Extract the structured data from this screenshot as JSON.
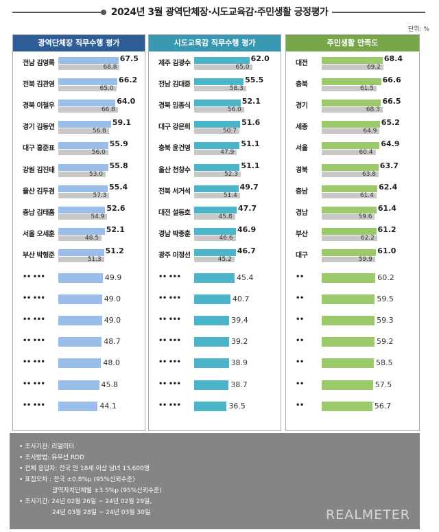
{
  "title": "2024년 3월 광역단체장·시도교육감·주민생활 긍정평가",
  "unit": "단위: %",
  "colors": {
    "panel1": "#2e5e95",
    "panel2": "#3898b2",
    "panel3": "#76a648",
    "bar1": "#9bbde9",
    "bar2": "#4cb5c9",
    "bar3": "#9cc969",
    "prev": "#c8c8c8",
    "footer": "#858585"
  },
  "chart_data": [
    {
      "type": "bar",
      "title": "광역단체장 직무수행 평가",
      "categories": [
        "전남 김영록",
        "전북 김관영",
        "경북 이철우",
        "경기 김동연",
        "대구 홍준표",
        "강원 김진태",
        "울산 김두겸",
        "충남 김태흠",
        "서울 오세훈",
        "부산 박형준",
        "•• •••",
        "•• •••",
        "•• •••",
        "•• •••",
        "•• •••",
        "•• •••",
        "•• •••"
      ],
      "series": [
        {
          "values": [
            67.5,
            66.2,
            64.0,
            59.1,
            55.9,
            55.8,
            55.4,
            52.6,
            52.1,
            51.2,
            49.9,
            49.0,
            49.0,
            48.7,
            48.0,
            45.8,
            44.1
          ]
        },
        {
          "values": [
            68.8,
            65.0,
            66.8,
            56.8,
            56.0,
            53.0,
            57.3,
            54.9,
            48.5,
            51.3,
            null,
            null,
            null,
            null,
            null,
            null,
            null
          ]
        }
      ]
    },
    {
      "type": "bar",
      "title": "시도교육감 직무수행 평가",
      "categories": [
        "제주 김광수",
        "전남 김대중",
        "경북 임종식",
        "대구 강은희",
        "충북 윤건영",
        "울산 천창수",
        "전북 서거석",
        "대전 설동호",
        "경남 박종훈",
        "광주 이정선",
        "•• •••",
        "•• •••",
        "•• •••",
        "•• •••",
        "•• •••",
        "•• •••",
        "•• •••"
      ],
      "series": [
        {
          "values": [
            62.0,
            55.5,
            52.1,
            51.6,
            51.1,
            51.1,
            49.7,
            47.7,
            46.9,
            46.7,
            45.4,
            40.7,
            39.4,
            39.2,
            38.9,
            38.7,
            36.5
          ]
        },
        {
          "values": [
            65.0,
            58.3,
            56.0,
            50.7,
            47.9,
            52.3,
            51.4,
            45.8,
            46.6,
            45.2,
            null,
            null,
            null,
            null,
            null,
            null,
            null
          ]
        }
      ]
    },
    {
      "type": "bar",
      "title": "주민생활 만족도",
      "categories": [
        "대전",
        "충북",
        "경기",
        "세종",
        "서울",
        "경북",
        "충남",
        "경남",
        "부산",
        "대구",
        "••",
        "••",
        "••",
        "••",
        "••",
        "••",
        "••"
      ],
      "series": [
        {
          "values": [
            68.4,
            66.6,
            66.5,
            65.2,
            64.9,
            63.7,
            62.4,
            61.4,
            61.2,
            61.0,
            60.2,
            59.5,
            59.3,
            59.2,
            58.5,
            57.5,
            56.7
          ]
        },
        {
          "values": [
            69.2,
            61.5,
            68.3,
            64.9,
            60.4,
            63.8,
            61.4,
            59.6,
            62.2,
            59.9,
            null,
            null,
            null,
            null,
            null,
            null,
            null
          ]
        }
      ]
    }
  ],
  "footer": {
    "lines": [
      "• 조사기관: 리얼미터",
      "• 조사방법: 유무선 RDD",
      "• 전체 응답자: 전국 만 18세 이상 남녀 13,600명",
      "• 표집오차 : 전국 ±0.8%p (95%신뢰수준)",
      "광역자치단체별 ±3.5%p (95%신뢰수준)",
      "• 조사기간: 24년 02월 26일 ~ 24년 02월 29일,",
      "24년 03월 28일 ~ 24년 03월 30일"
    ],
    "logo": "REALMETER"
  }
}
